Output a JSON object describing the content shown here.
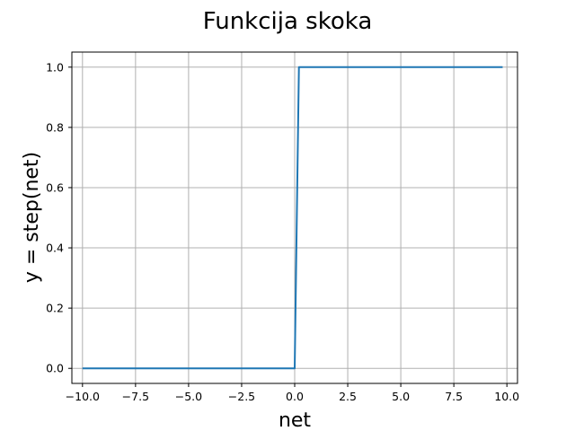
{
  "chart_data": {
    "type": "line",
    "title": "Funkcija skoka",
    "xlabel": "net",
    "ylabel": "y = step(net)",
    "xlim": [
      -10.5,
      10.5
    ],
    "ylim": [
      -0.05,
      1.05
    ],
    "xticks": [
      -10.0,
      -7.5,
      -5.0,
      -2.5,
      0.0,
      2.5,
      5.0,
      7.5,
      10.0
    ],
    "xtick_labels": [
      "−10.0",
      "−7.5",
      "−5.0",
      "−2.5",
      "0.0",
      "2.5",
      "5.0",
      "7.5",
      "10.0"
    ],
    "yticks": [
      0.0,
      0.2,
      0.4,
      0.6,
      0.8,
      1.0
    ],
    "ytick_labels": [
      "0.0",
      "0.2",
      "0.4",
      "0.6",
      "0.8",
      "1.0"
    ],
    "grid": true,
    "series": [
      {
        "color": "#1f77b4",
        "x": [
          -10.0,
          0.0,
          0.2,
          9.8
        ],
        "y": [
          0.0,
          0.0,
          1.0,
          1.0
        ]
      }
    ]
  }
}
